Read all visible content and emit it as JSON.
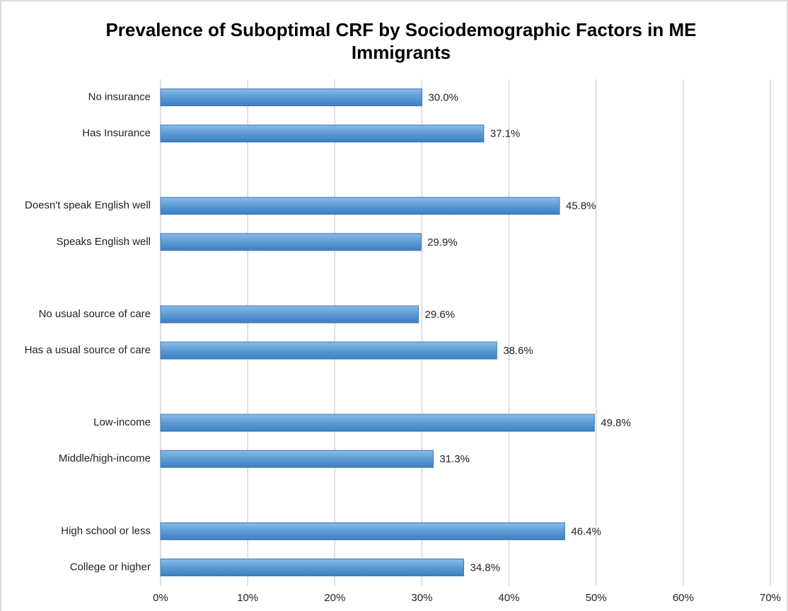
{
  "chart_data": {
    "type": "hbar",
    "title": "Prevalence of Suboptimal CRF by Sociodemographic Factors in ME Immigrants",
    "categories": [
      "No insurance",
      "Has Insurance",
      null,
      "Doesn't speak English well",
      "Speaks English well",
      null,
      "No usual source of care",
      "Has a usual source of care",
      null,
      "Low-income",
      "Middle/high-income",
      null,
      "High school or less",
      "College or higher"
    ],
    "values": [
      30.0,
      37.1,
      null,
      45.8,
      29.9,
      null,
      29.6,
      38.6,
      null,
      49.8,
      31.3,
      null,
      46.4,
      34.8
    ],
    "value_labels": [
      "30.0%",
      "37.1%",
      null,
      "45.8%",
      "29.9%",
      null,
      "29.6%",
      "38.6%",
      null,
      "49.8%",
      "31.3%",
      null,
      "46.4%",
      "34.8%"
    ],
    "color": "#5b9bd5",
    "xlim": [
      0,
      70
    ],
    "xticks": [
      {
        "value": 0,
        "label": "0%"
      },
      {
        "value": 10,
        "label": "10%"
      },
      {
        "value": 20,
        "label": "20%"
      },
      {
        "value": 30,
        "label": "30%"
      },
      {
        "value": 40,
        "label": "40%"
      },
      {
        "value": 50,
        "label": "50%"
      },
      {
        "value": 60,
        "label": "60%"
      },
      {
        "value": 70,
        "label": "70%"
      }
    ],
    "grid": true
  }
}
